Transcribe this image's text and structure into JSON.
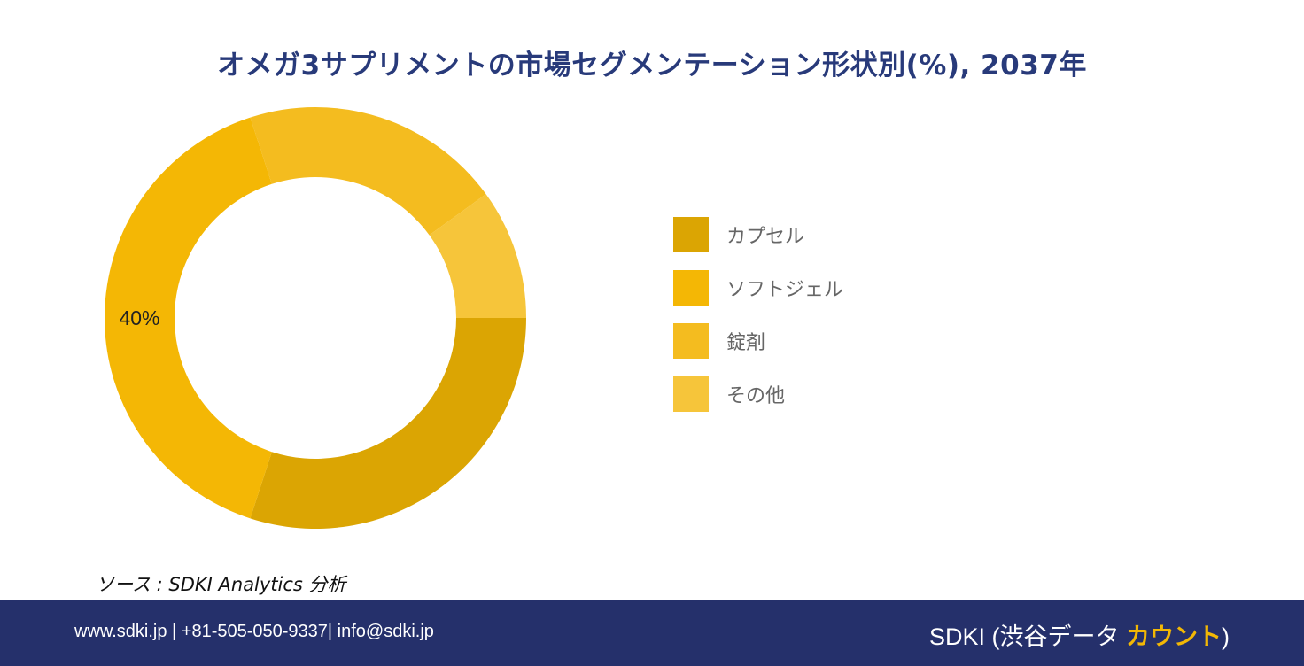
{
  "title": "オメガ3サプリメントの市場セグメンテーション形状別(%), 2037年",
  "chart_data": {
    "type": "pie",
    "variant": "donut",
    "slices": [
      {
        "name": "カプセル",
        "value": 30,
        "color": "#dba503"
      },
      {
        "name": "ソフトジェル",
        "value": 40,
        "color": "#f4b705",
        "label": "40%"
      },
      {
        "name": "錠剤",
        "value": 20,
        "color": "#f4bc1f"
      },
      {
        "name": "その他",
        "value": 10,
        "color": "#f6c53a"
      }
    ],
    "legend_position": "right"
  },
  "source": "ソース : SDKI Analytics 分析",
  "footer": {
    "contact": "www.sdki.jp | +81-505-050-9337| info@sdki.jp",
    "brand_prefix": "SDKI (渋谷データ ",
    "brand_accent": "カウント",
    "brand_suffix": ")"
  }
}
